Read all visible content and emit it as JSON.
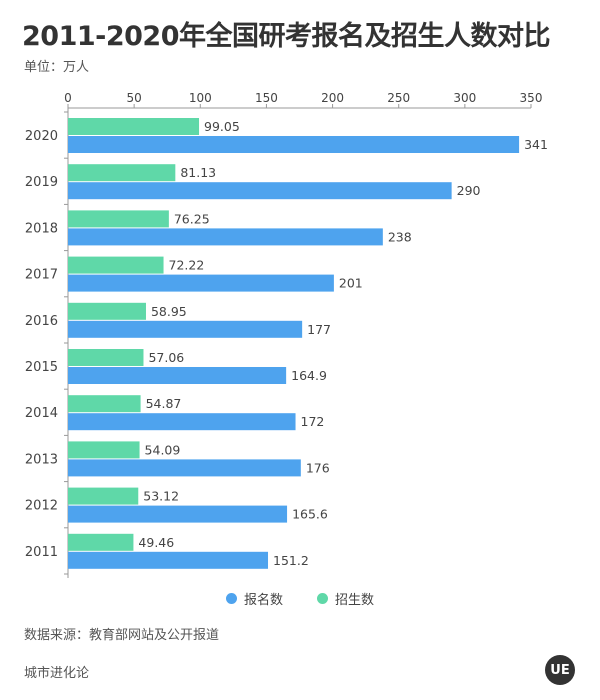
{
  "header": {
    "title": "2011-2020年全国研考报名及招生人数对比",
    "unit": "单位：万人"
  },
  "footer": {
    "source": "数据来源：教育部网站及公开报道",
    "brand": "城市进化论",
    "logo_text": "UE"
  },
  "colors": {
    "applicants": "#4ea3ee",
    "admissions": "#5fd8a8",
    "axis": "#999999",
    "text": "#444444"
  },
  "chart_data": {
    "type": "bar",
    "orientation": "horizontal",
    "title": "2011-2020年全国研考报名及招生人数对比",
    "xlabel": "",
    "ylabel": "",
    "unit": "万人",
    "xlim": [
      0,
      350
    ],
    "xticks": [
      0,
      50,
      100,
      150,
      200,
      250,
      300,
      350
    ],
    "categories": [
      "2020",
      "2019",
      "2018",
      "2017",
      "2016",
      "2015",
      "2014",
      "2013",
      "2012",
      "2011"
    ],
    "series": [
      {
        "name": "报名数",
        "color": "#4ea3ee",
        "values": [
          341,
          290,
          238,
          201,
          177,
          164.9,
          172,
          176,
          165.6,
          151.2
        ],
        "labels": [
          "341",
          "290",
          "238",
          "201",
          "177",
          "164.9",
          "172",
          "176",
          "165.6",
          "151.2"
        ]
      },
      {
        "name": "招生数",
        "color": "#5fd8a8",
        "values": [
          99.05,
          81.13,
          76.25,
          72.22,
          58.95,
          57.06,
          54.87,
          54.09,
          53.12,
          49.46
        ],
        "labels": [
          "99.05",
          "81.13",
          "76.25",
          "72.22",
          "58.95",
          "57.06",
          "54.87",
          "54.09",
          "53.12",
          "49.46"
        ]
      }
    ],
    "legend": [
      "报名数",
      "招生数"
    ],
    "legend_position": "bottom-center",
    "grid": false
  }
}
